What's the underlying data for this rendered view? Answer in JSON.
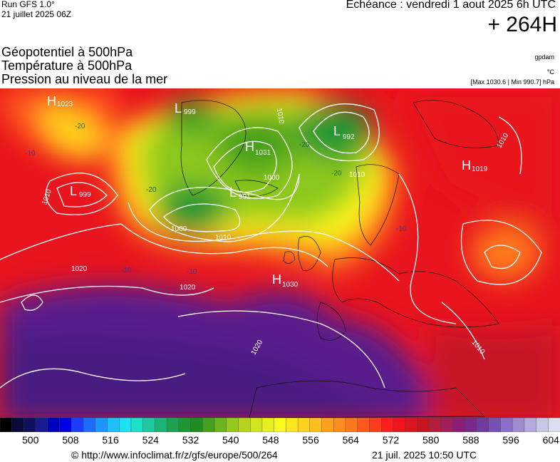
{
  "header": {
    "run": "Run GFS 1.0°",
    "run_date": "21 juillet 2025 06Z",
    "echeance": "Echéance : vendredi 1 aout 2025 6h UTC",
    "lead": "+ 264H"
  },
  "fields": [
    "Géopotentiel à 500hPa",
    "Température à 500hPa",
    "Pression au niveau de la mer"
  ],
  "units": {
    "geopotential": "gpdam",
    "temperature": "°C",
    "pressure": "[Max 1030.6 | Min 990.7] hPa"
  },
  "centers": [
    {
      "type": "H",
      "value": "1023"
    },
    {
      "type": "L",
      "value": "999"
    },
    {
      "type": "L",
      "value": "999"
    },
    {
      "type": "H",
      "value": "1031"
    },
    {
      "type": "L",
      "value": "991"
    },
    {
      "type": "L",
      "value": "992"
    },
    {
      "type": "H",
      "value": "1019"
    },
    {
      "type": "H",
      "value": "1030"
    }
  ],
  "isobar_labels": [
    "1010",
    "1000",
    "1010",
    "1010",
    "1020",
    "1020",
    "1020",
    "1010",
    "1010",
    "1000",
    "1010"
  ],
  "temp_labels": [
    "-20",
    "-20",
    "-10",
    "-10",
    "-20",
    "-20",
    "-10",
    "-10"
  ],
  "colorbar": {
    "ticks": [
      "500",
      "508",
      "516",
      "524",
      "532",
      "540",
      "548",
      "556",
      "564",
      "572",
      "580",
      "588",
      "596",
      "604"
    ],
    "colors": [
      "#000000",
      "#0a0a3a",
      "#101060",
      "#1a1a90",
      "#0000c0",
      "#0000e8",
      "#1e3cff",
      "#1e6cff",
      "#1e96ff",
      "#1ebeff",
      "#1ee0f0",
      "#1ee0c8",
      "#1ec8a0",
      "#1eb478",
      "#1ea050",
      "#1e9632",
      "#1e8c1e",
      "#46a01e",
      "#6eb41e",
      "#96c81e",
      "#b4d21e",
      "#d2e61e",
      "#e6f01e",
      "#fafa1e",
      "#ffe61e",
      "#ffd21e",
      "#ffbe1e",
      "#ffa01e",
      "#ff8c1e",
      "#ff781e",
      "#ff5a1e",
      "#ff3c1e",
      "#ff1e1e",
      "#f0141e",
      "#dc141e",
      "#c8141e",
      "#b41e3c",
      "#a01e5a",
      "#8c1e78",
      "#78288c",
      "#6e3ca0",
      "#7850b4",
      "#8c6ec8",
      "#a08cd2",
      "#b4aadc",
      "#c8c8e6",
      "#dcdcf0"
    ]
  },
  "colors": {
    "purple": "#5a1e8c",
    "deep_purple": "#3c1478",
    "red": "#e8141e",
    "dark_red": "#c81428",
    "orange": "#ff781e",
    "yellow": "#fafa1e",
    "green": "#1e9632",
    "light_green": "#8cc81e"
  },
  "footer": {
    "url": "© http://www.infoclimat.fr/z/gfs/europe/500/264",
    "date": "21 juil. 2025 10:50 UTC"
  }
}
